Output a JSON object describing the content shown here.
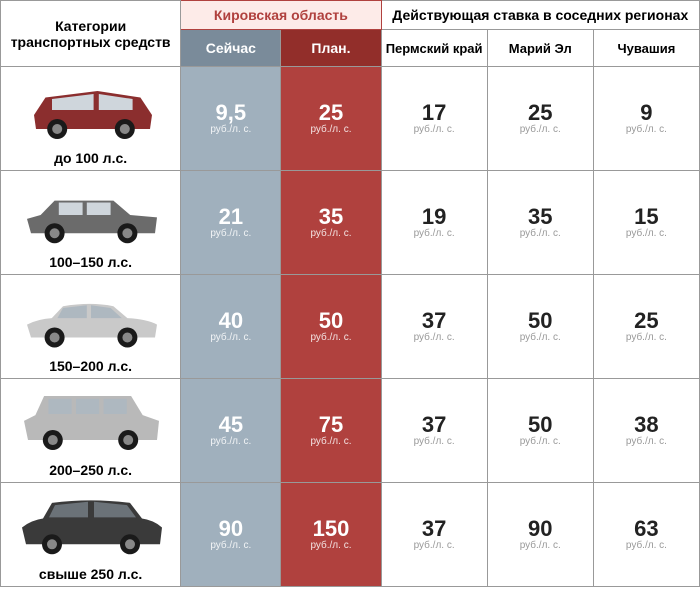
{
  "headers": {
    "category": "Категории транспортных средств",
    "kirov": "Кировская область",
    "neighbors": "Действующая ставка в соседних регионах",
    "now": "Сейчас",
    "plan": "План.",
    "perm": "Пермский край",
    "mari": "Марий Эл",
    "chuv": "Чувашия"
  },
  "unit": "руб./л. с.",
  "colors": {
    "now_bg": "#a0b0bd",
    "now_hdr": "#7a8b9a",
    "plan_bg": "#b0413e",
    "plan_hdr": "#922e2a",
    "kirov_hdr_bg": "#fdebe8",
    "kirov_hdr_fg": "#b0413e"
  },
  "cars": [
    {
      "body_color": "#8b2e2e",
      "style": "hatchback",
      "w": 130,
      "h": 50
    },
    {
      "body_color": "#6b6b6b",
      "style": "sedan-boxy",
      "w": 140,
      "h": 48
    },
    {
      "body_color": "#c9c9c9",
      "style": "sedan",
      "w": 140,
      "h": 46
    },
    {
      "body_color": "#b9b9b9",
      "style": "suv",
      "w": 145,
      "h": 58
    },
    {
      "body_color": "#3a3a3a",
      "style": "suv-sport",
      "w": 150,
      "h": 56
    }
  ],
  "rows": [
    {
      "label": "до 100 л.с.",
      "now": "9,5",
      "plan": "25",
      "perm": "17",
      "mari": "25",
      "chuv": "9"
    },
    {
      "label": "100–150 л.с.",
      "now": "21",
      "plan": "35",
      "perm": "19",
      "mari": "35",
      "chuv": "15"
    },
    {
      "label": "150–200 л.с.",
      "now": "40",
      "plan": "50",
      "perm": "37",
      "mari": "50",
      "chuv": "25"
    },
    {
      "label": "200–250 л.с.",
      "now": "45",
      "plan": "75",
      "perm": "37",
      "mari": "50",
      "chuv": "38"
    },
    {
      "label": "свыше 250 л.с.",
      "now": "90",
      "plan": "150",
      "perm": "37",
      "mari": "90",
      "chuv": "63"
    }
  ]
}
